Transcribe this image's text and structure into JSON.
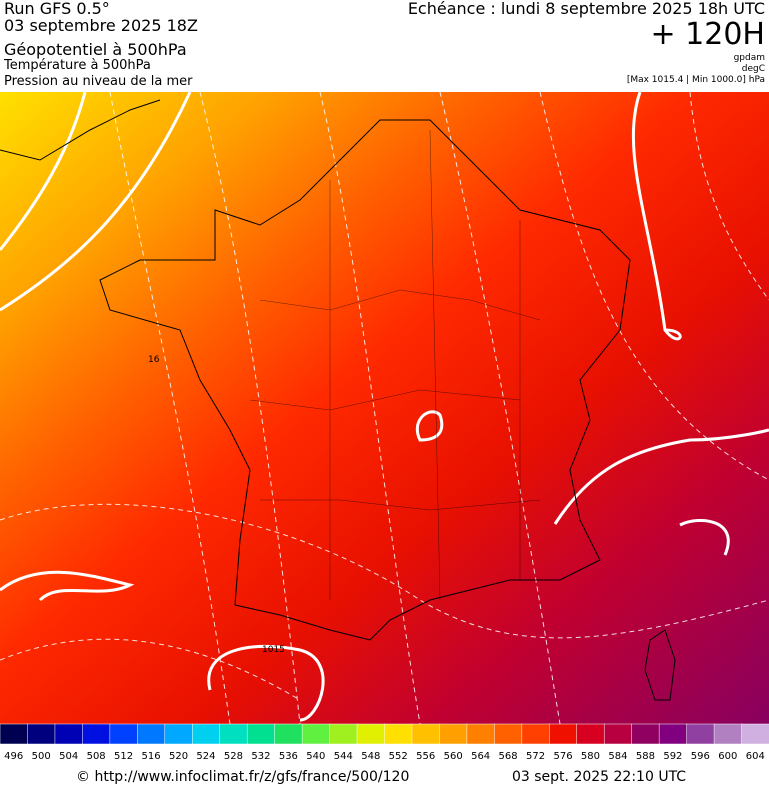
{
  "header": {
    "run": "Run GFS 0.5°",
    "date": "03 septembre 2025 18Z",
    "field": "Géopotentiel à 500hPa",
    "field2": "Température à 500hPa",
    "field3": "Pression au niveau de la mer",
    "forecast": "Echéance : lundi 8 septembre 2025 18h UTC",
    "lead": "+ 120H",
    "unit1": "gpdam",
    "unit2": "degC",
    "pressure_range": "[Max 1015.4 | Min 1000.0] hPa"
  },
  "map": {
    "contour_labels": [
      "16",
      "1015"
    ]
  },
  "legend": {
    "colorbar": {
      "values": [
        496,
        500,
        504,
        508,
        512,
        516,
        520,
        524,
        528,
        532,
        536,
        540,
        544,
        548,
        552,
        556,
        560,
        564,
        568,
        572,
        576,
        580,
        584,
        588,
        592,
        596,
        600,
        604
      ],
      "colors": [
        "#000050",
        "#00007f",
        "#0000b4",
        "#0010e0",
        "#0040ff",
        "#0078ff",
        "#00a8ff",
        "#00d0f0",
        "#00e0c0",
        "#00e090",
        "#20e060",
        "#60f040",
        "#a0f020",
        "#e0f000",
        "#ffe000",
        "#ffc000",
        "#ffa000",
        "#ff8000",
        "#ff6000",
        "#ff4000",
        "#f01000",
        "#d80020",
        "#b80040",
        "#900060",
        "#800080",
        "#9040a0",
        "#b080c0",
        "#d0b0e0"
      ]
    }
  },
  "footer": {
    "source": "© http://www.infoclimat.fr/z/gfs/france/500/120",
    "generated": "03 sept. 2025 22:10 UTC"
  }
}
